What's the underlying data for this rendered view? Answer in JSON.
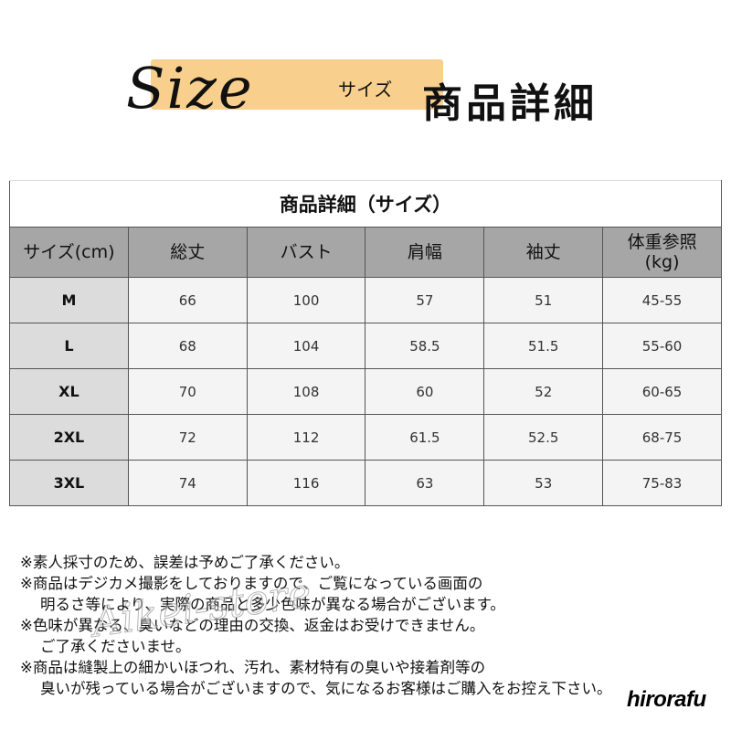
{
  "banner": {
    "script_title": "Size",
    "kana": "サイズ",
    "title": "商品詳細",
    "accent_color": "#f8cf8c"
  },
  "table": {
    "title": "商品詳細（サイズ）",
    "headers": [
      "サイズ(cm)",
      "総丈",
      "バスト",
      "肩幅",
      "袖丈",
      "体重参照(kg)"
    ],
    "header_lines": {
      "weight_1": "体重参照",
      "weight_2": "(kg)"
    },
    "rows": [
      [
        "M",
        "66",
        "100",
        "57",
        "51",
        "45-55"
      ],
      [
        "L",
        "68",
        "104",
        "58.5",
        "51.5",
        "55-60"
      ],
      [
        "XL",
        "70",
        "108",
        "60",
        "52",
        "60-65"
      ],
      [
        "2XL",
        "72",
        "112",
        "61.5",
        "52.5",
        "68-75"
      ],
      [
        "3XL",
        "74",
        "116",
        "63",
        "53",
        "75-83"
      ]
    ]
  },
  "notes": [
    "※素人採寸のため、誤差は予めご了承ください。",
    "※商品はデジカメ撮影をしておりますので、ご覧になっている画面の",
    "明るさ等により、実際の商品と多少色味が異なる場合がございます。",
    "※色味が異なる、臭いなどの理由の交換、返金はお受けできません。",
    "ご了承くださいませ。",
    "※商品は縫製上の細かいほつれ、汚れ、素材特有の臭いや接着剤等の",
    "臭いが残っている場合がございますので、気になるお客様はご購入をお控え下さい。"
  ],
  "watermark": "Aikei-store",
  "brand": "hirorafu"
}
